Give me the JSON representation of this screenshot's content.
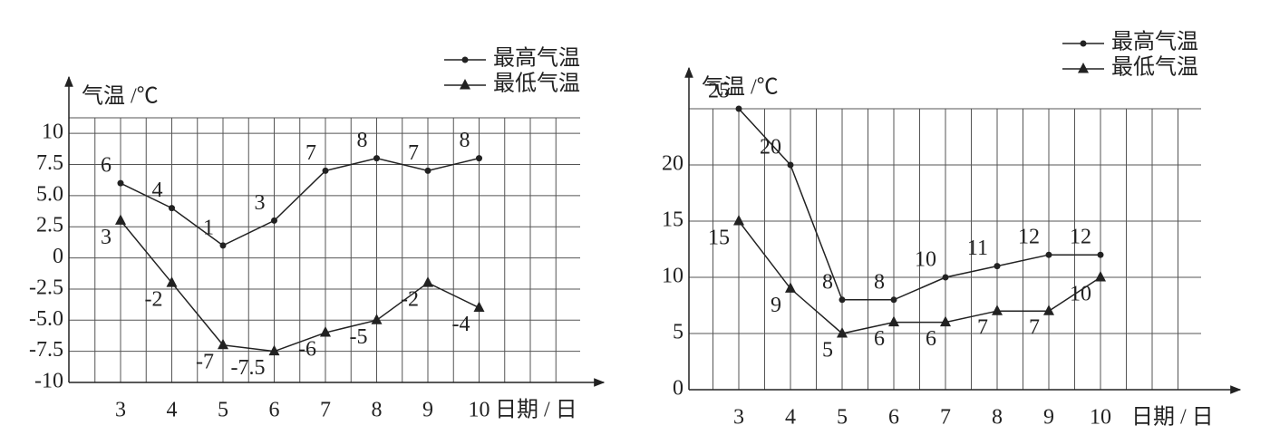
{
  "chart_data": [
    {
      "type": "line",
      "y_label": "气温 /℃",
      "x_label": "日期 / 日",
      "categories": [
        "3",
        "4",
        "5",
        "6",
        "7",
        "8",
        "9",
        "10"
      ],
      "series": [
        {
          "name": "最高气温",
          "marker": "circle",
          "color": "#222222",
          "values": [
            6,
            4,
            1,
            3,
            7,
            8,
            7,
            8
          ]
        },
        {
          "name": "最低气温",
          "marker": "triangle",
          "color": "#222222",
          "values": [
            3,
            -2,
            -7,
            -7.5,
            -6,
            -5,
            -2,
            -4
          ]
        }
      ],
      "ylim": [
        -10,
        11.25
      ],
      "yticks": [
        -10,
        -7.5,
        {
          "value": -5,
          "label": "-5.0"
        },
        -2.5,
        0,
        2.5,
        {
          "value": 5,
          "label": "5.0"
        },
        7.5,
        10
      ],
      "grid": true,
      "legend": "top-right"
    },
    {
      "type": "line",
      "y_label": "气温 /℃",
      "x_label": "日期 / 日",
      "categories": [
        "3",
        "4",
        "5",
        "6",
        "7",
        "8",
        "9",
        "10"
      ],
      "series": [
        {
          "name": "最高气温",
          "marker": "circle",
          "color": "#222222",
          "values": [
            25,
            20,
            8,
            8,
            10,
            11,
            12,
            12
          ]
        },
        {
          "name": "最低气温",
          "marker": "triangle",
          "color": "#222222",
          "values": [
            15,
            9,
            5,
            6,
            6,
            7,
            7,
            10
          ]
        }
      ],
      "ylim": [
        0,
        25
      ],
      "yticks": [
        0,
        5,
        10,
        15,
        20
      ],
      "grid": true,
      "legend": "top-right"
    }
  ]
}
